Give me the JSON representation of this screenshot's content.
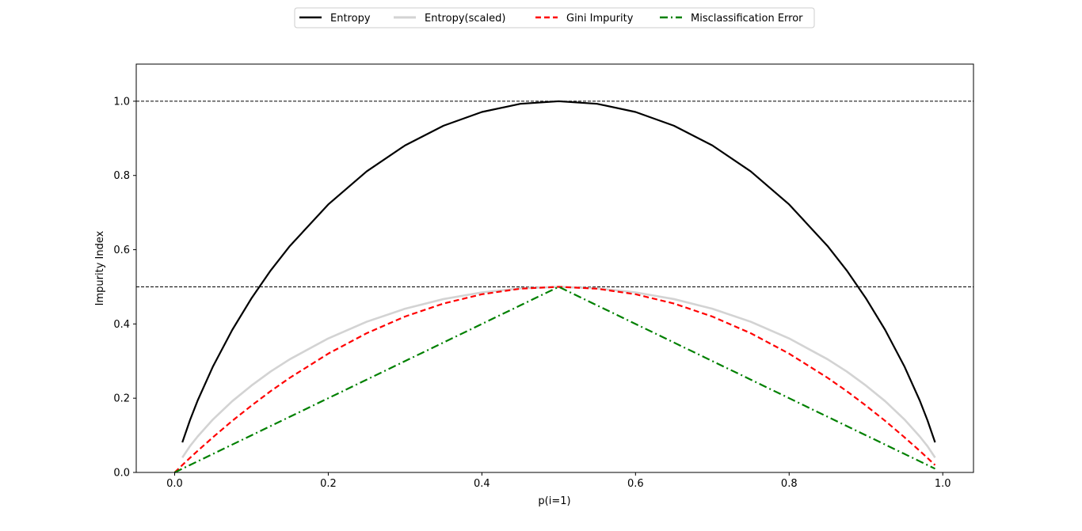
{
  "chart_data": {
    "type": "line",
    "xlabel": "p(i=1)",
    "ylabel": "Impurity Index",
    "xlim": [
      -0.05,
      1.04
    ],
    "ylim": [
      0.0,
      1.1
    ],
    "x_ticks": [
      0.0,
      0.2,
      0.4,
      0.6,
      0.8,
      1.0
    ],
    "y_ticks": [
      0.0,
      0.2,
      0.4,
      0.6,
      0.8,
      1.0
    ],
    "x_tick_labels": [
      "0.0",
      "0.2",
      "0.4",
      "0.6",
      "0.8",
      "1.0"
    ],
    "y_tick_labels": [
      "0.0",
      "0.2",
      "0.4",
      "0.6",
      "0.8",
      "1.0"
    ],
    "grid": false,
    "legend_position": "top-center",
    "reference_lines": [
      {
        "y": 1.0,
        "style": "dashed",
        "color": "#000000"
      },
      {
        "y": 0.5,
        "style": "dashed",
        "color": "#000000"
      }
    ],
    "x": [
      0.0,
      0.01,
      0.02,
      0.03,
      0.05,
      0.075,
      0.1,
      0.125,
      0.15,
      0.2,
      0.25,
      0.3,
      0.35,
      0.4,
      0.45,
      0.5,
      0.55,
      0.6,
      0.65,
      0.7,
      0.75,
      0.8,
      0.85,
      0.875,
      0.9,
      0.925,
      0.95,
      0.97,
      0.98,
      0.99
    ],
    "series": [
      {
        "name": "Entropy",
        "color": "#000000",
        "dash": "solid",
        "width": 2.2,
        "values": [
          null,
          0.081,
          0.141,
          0.194,
          0.286,
          0.384,
          0.469,
          0.544,
          0.61,
          0.722,
          0.811,
          0.881,
          0.934,
          0.971,
          0.993,
          1.0,
          0.993,
          0.971,
          0.934,
          0.881,
          0.811,
          0.722,
          0.61,
          0.544,
          0.469,
          0.384,
          0.286,
          0.194,
          0.141,
          0.081
        ]
      },
      {
        "name": "Entropy(scaled)",
        "color": "#d3d3d3",
        "dash": "solid",
        "width": 2.6,
        "values": [
          null,
          0.04,
          0.071,
          0.097,
          0.143,
          0.192,
          0.234,
          0.272,
          0.305,
          0.361,
          0.406,
          0.441,
          0.467,
          0.485,
          0.496,
          0.5,
          0.496,
          0.485,
          0.467,
          0.441,
          0.406,
          0.361,
          0.305,
          0.272,
          0.234,
          0.192,
          0.143,
          0.097,
          0.071,
          0.04
        ]
      },
      {
        "name": "Gini Impurity",
        "color": "#ff0000",
        "dash": "dashed",
        "width": 2.2,
        "values": [
          0.0,
          0.0198,
          0.0392,
          0.0582,
          0.095,
          0.139,
          0.18,
          0.219,
          0.255,
          0.32,
          0.375,
          0.42,
          0.455,
          0.48,
          0.495,
          0.5,
          0.495,
          0.48,
          0.455,
          0.42,
          0.375,
          0.32,
          0.255,
          0.219,
          0.18,
          0.139,
          0.095,
          0.0582,
          0.0392,
          0.0198
        ]
      },
      {
        "name": "Misclassification Error",
        "color": "#008000",
        "dash": "dashdot",
        "width": 2.2,
        "values": [
          0.0,
          0.01,
          0.02,
          0.03,
          0.05,
          0.075,
          0.1,
          0.125,
          0.15,
          0.2,
          0.25,
          0.3,
          0.35,
          0.4,
          0.45,
          0.5,
          0.45,
          0.4,
          0.35,
          0.3,
          0.25,
          0.2,
          0.15,
          0.125,
          0.1,
          0.075,
          0.05,
          0.03,
          0.02,
          0.01
        ]
      }
    ]
  }
}
